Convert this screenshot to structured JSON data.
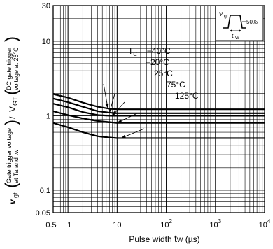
{
  "chart_data": {
    "type": "line",
    "x_scale": "log",
    "y_scale": "log",
    "xlim": [
      0.5,
      10000
    ],
    "ylim": [
      0.05,
      30
    ],
    "grid": true,
    "xlabel_prefix": "Pulse width ",
    "xlabel_symbol": "t",
    "xlabel_sub": "W",
    "xlabel_unit": " (µs)",
    "ylabel": {
      "left_symbol": "v",
      "left_sub": "gt",
      "left_paren_top": "Gate trigger voltage",
      "left_paren_bottom": "at Ta and tw",
      "slash": "/",
      "right_symbol": "V",
      "right_sub": "GT",
      "right_paren_top": "DC gate trigger",
      "right_paren_bottom": "voltage at 25°C"
    },
    "x_tick_labels": [
      {
        "value": 0.5,
        "text": "0.5"
      },
      {
        "value": 1,
        "text": "1"
      },
      {
        "value": 10,
        "text": "10"
      },
      {
        "value": 100,
        "base": "10",
        "exp": "2"
      },
      {
        "value": 1000,
        "base": "10",
        "exp": "3"
      },
      {
        "value": 10000,
        "base": "10",
        "exp": "4"
      }
    ],
    "y_tick_labels": [
      {
        "value": 30,
        "text": "30"
      },
      {
        "value": 10,
        "text": "10"
      },
      {
        "value": 1,
        "text": "1"
      },
      {
        "value": 0.1,
        "text": "0.1"
      },
      {
        "value": 0.05,
        "text": "0.05"
      }
    ],
    "series": [
      {
        "name": "TC = −40°C",
        "x": [
          0.5,
          1,
          2,
          4,
          7,
          10,
          100,
          1000,
          10000
        ],
        "y": [
          1.95,
          1.75,
          1.5,
          1.32,
          1.24,
          1.22,
          1.22,
          1.22,
          1.22
        ]
      },
      {
        "name": "−20°C",
        "x": [
          0.5,
          1,
          2,
          4,
          7,
          10,
          100,
          1000,
          10000
        ],
        "y": [
          1.7,
          1.52,
          1.32,
          1.15,
          1.1,
          1.08,
          1.08,
          1.08,
          1.08
        ]
      },
      {
        "name": "25°C",
        "x": [
          0.5,
          1,
          2,
          4,
          7,
          10,
          100,
          1000,
          10000
        ],
        "y": [
          1.45,
          1.3,
          1.12,
          1.02,
          1.0,
          1.0,
          1.0,
          1.0,
          1.0
        ]
      },
      {
        "name": "75°C",
        "x": [
          0.5,
          1,
          2,
          4,
          7,
          10,
          100,
          1000,
          10000
        ],
        "y": [
          1.15,
          1.02,
          0.92,
          0.85,
          0.82,
          0.8,
          0.8,
          0.8,
          0.8
        ]
      },
      {
        "name": "125°C",
        "x": [
          0.5,
          1,
          2,
          4,
          7,
          10,
          100,
          1000,
          10000
        ],
        "y": [
          0.8,
          0.7,
          0.6,
          0.53,
          0.51,
          0.5,
          0.5,
          0.5,
          0.5
        ]
      }
    ],
    "annotations": [
      {
        "series": 0,
        "label_prefix": "T",
        "label_sub": "C",
        "label_rest": " = −40°C",
        "arrow_x": 6.5
      },
      {
        "series": 1,
        "label": "−20°C",
        "arrow_x": 7
      },
      {
        "series": 2,
        "label": "25°C",
        "arrow_x": 8
      },
      {
        "series": 3,
        "label": "75°C",
        "arrow_x": 10
      },
      {
        "series": 4,
        "label": "125°C",
        "arrow_x": 12
      }
    ],
    "inset": {
      "symbol": "v",
      "symbol_sub": "gt",
      "percent_label": "50%",
      "tw_symbol": "t",
      "tw_sub": "W"
    }
  }
}
